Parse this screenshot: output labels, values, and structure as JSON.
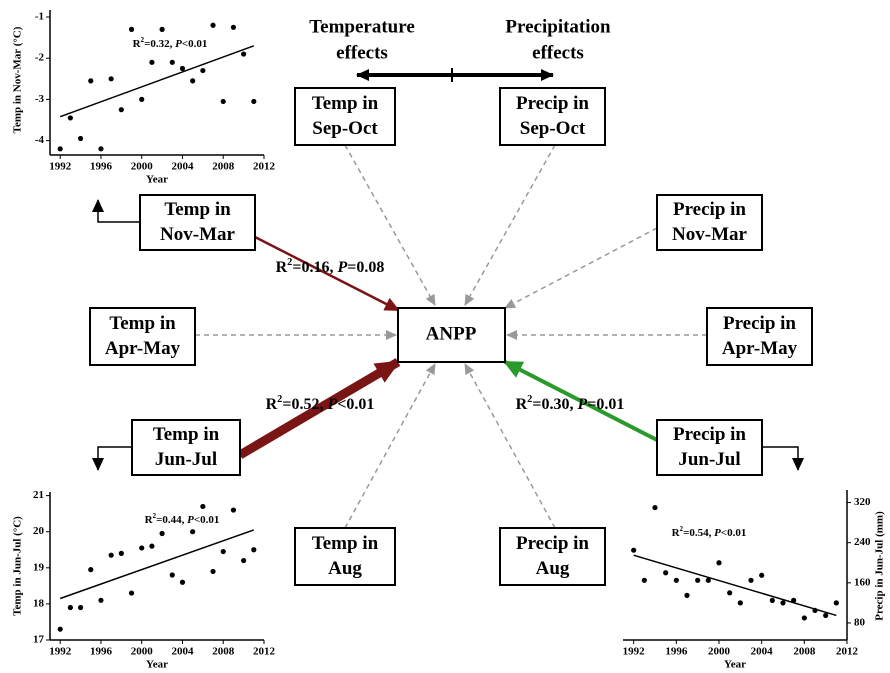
{
  "header": {
    "left": [
      "Temperature",
      "effects"
    ],
    "right": [
      "Precipitation",
      "effects"
    ]
  },
  "center": "ANPP",
  "nodes": [
    {
      "label": [
        "Temp in",
        "Sep-Oct"
      ]
    },
    {
      "label": [
        "Precip in",
        "Sep-Oct"
      ]
    },
    {
      "label": [
        "Temp in",
        "Nov-Mar"
      ]
    },
    {
      "label": [
        "Precip in",
        "Nov-Mar"
      ]
    },
    {
      "label": [
        "Temp in",
        "Apr-May"
      ]
    },
    {
      "label": [
        "Precip in",
        "Apr-May"
      ]
    },
    {
      "label": [
        "Temp in",
        "Jun-Jul"
      ]
    },
    {
      "label": [
        "Precip in",
        "Jun-Jul"
      ]
    },
    {
      "label": [
        "Temp in",
        "Aug"
      ]
    },
    {
      "label": [
        "Precip in",
        "Aug"
      ]
    }
  ],
  "edges": [
    {
      "label": [
        "R",
        "2",
        "=0.16, ",
        "P",
        "=0.08"
      ]
    },
    {
      "label": [
        "R",
        "2",
        "=0.52, ",
        "P",
        "<0.01"
      ]
    },
    {
      "label": [
        "R",
        "2",
        "=0.30, ",
        "P",
        "=0.01"
      ]
    }
  ],
  "chart_data": [
    {
      "type": "scatter",
      "ylabel": "Temp in Nov-Mar (°C)",
      "xlabel": "Year",
      "annotation": [
        "R",
        "2",
        "=0.32, ",
        "P",
        "<0.01"
      ],
      "x": [
        1992,
        1993,
        1994,
        1995,
        1996,
        1997,
        1998,
        1999,
        2000,
        2001,
        2002,
        2003,
        2004,
        2005,
        2006,
        2007,
        2008,
        2009,
        2010,
        2011
      ],
      "values": [
        -4.2,
        -3.45,
        -3.95,
        -2.55,
        -4.2,
        -2.5,
        -3.25,
        -1.3,
        -3.0,
        -2.1,
        -1.3,
        -2.1,
        -2.25,
        -2.55,
        -2.3,
        -1.2,
        -3.05,
        -1.25,
        -1.9,
        -3.05
      ],
      "trend": {
        "x": [
          1992,
          2011
        ],
        "values": [
          -3.42,
          -1.7
        ]
      },
      "xlim": [
        1991,
        2012
      ],
      "ylim": [
        -4.35,
        -0.83
      ],
      "xticks": [
        1992,
        1996,
        2000,
        2004,
        2008,
        2012
      ],
      "yticks": [
        -1,
        -2,
        -3,
        -4
      ],
      "color": "#000000"
    },
    {
      "type": "scatter",
      "ylabel": "Temp in Jun-Jul (°C)",
      "xlabel": "Year",
      "annotation": [
        "R",
        "2",
        "=0.44, ",
        "P",
        "<0.01"
      ],
      "x": [
        1992,
        1993,
        1994,
        1995,
        1996,
        1997,
        1998,
        1999,
        2000,
        2001,
        2002,
        2003,
        2004,
        2005,
        2006,
        2007,
        2008,
        2009,
        2010,
        2011
      ],
      "values": [
        17.3,
        17.9,
        17.9,
        18.95,
        18.1,
        19.35,
        19.4,
        18.3,
        19.55,
        19.6,
        19.95,
        18.8,
        18.6,
        20.0,
        20.7,
        18.9,
        19.45,
        20.6,
        19.2,
        19.5
      ],
      "trend": {
        "x": [
          1992,
          2011
        ],
        "values": [
          18.15,
          20.05
        ]
      },
      "xlim": [
        1991,
        2012
      ],
      "ylim": [
        17,
        21.1
      ],
      "xticks": [
        1992,
        1996,
        2000,
        2004,
        2008,
        2012
      ],
      "yticks": [
        17,
        18,
        19,
        20,
        21
      ],
      "color": "#000000"
    },
    {
      "type": "scatter",
      "ylabel": "Precip in Jun-Jul (mm)",
      "xlabel": "Year",
      "annotation": [
        "R",
        "2",
        "=0.54, ",
        "P",
        "<0.01"
      ],
      "x": [
        1992,
        1993,
        1994,
        1995,
        1996,
        1997,
        1998,
        1999,
        2000,
        2001,
        2002,
        2003,
        2004,
        2005,
        2006,
        2007,
        2008,
        2009,
        2010,
        2011
      ],
      "values": [
        225,
        165,
        310,
        180,
        165,
        135,
        165,
        165,
        200,
        140,
        120,
        165,
        175,
        125,
        120,
        125,
        90,
        105,
        95,
        120
      ],
      "trend": {
        "x": [
          1992,
          2011
        ],
        "values": [
          215,
          95
        ]
      },
      "xlim": [
        1991,
        2012
      ],
      "ylim": [
        46,
        345
      ],
      "xticks": [
        1992,
        1996,
        2000,
        2004,
        2008,
        2012
      ],
      "yticks": [
        80,
        160,
        240,
        320
      ],
      "color": "#000000"
    }
  ]
}
